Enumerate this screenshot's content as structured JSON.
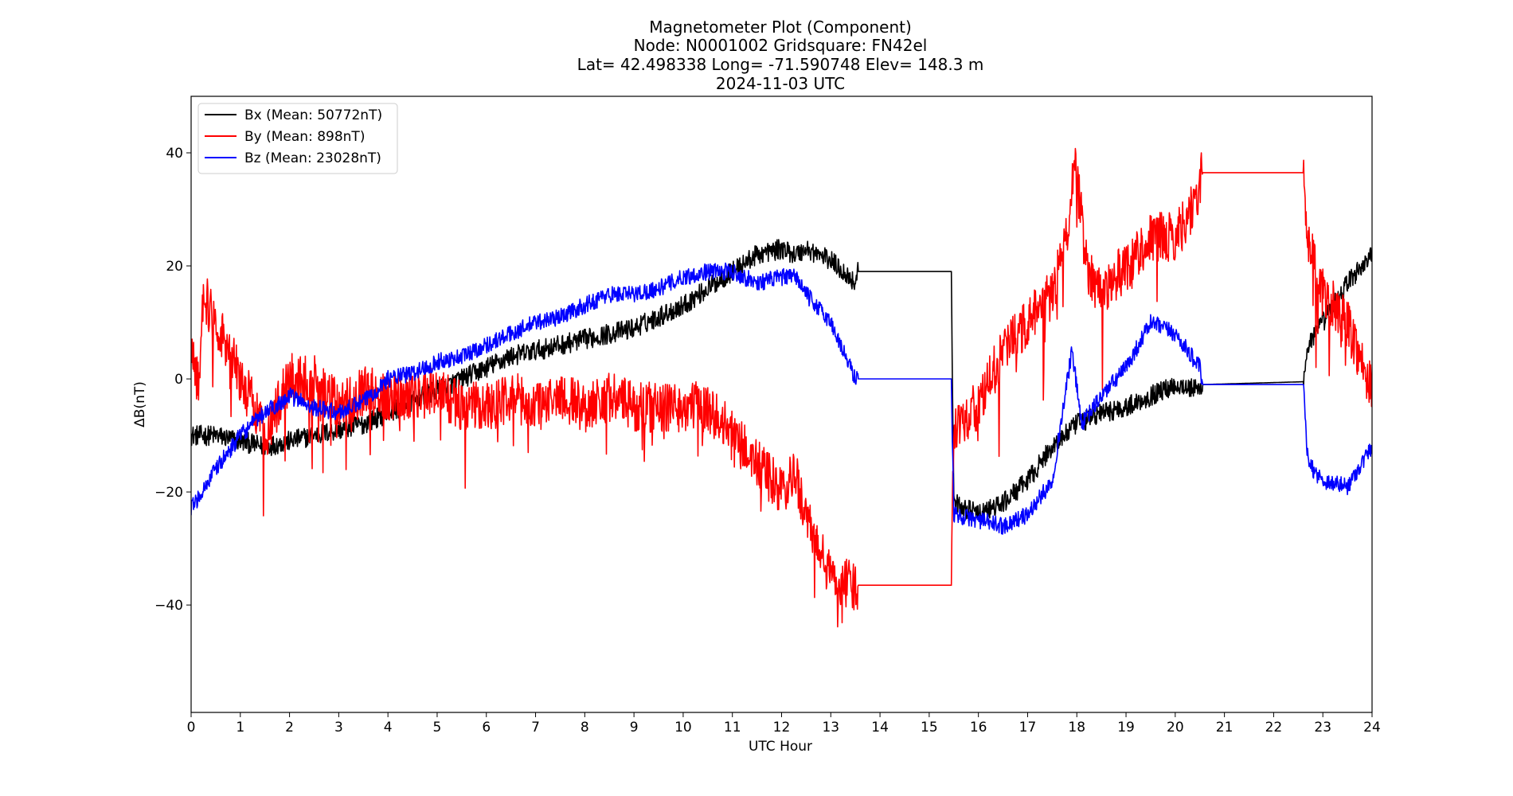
{
  "chart_data": {
    "type": "line",
    "title_lines": [
      "Magnetometer Plot (Component)",
      "Node:  N0001002     Gridsquare:  FN42el",
      "Lat= 42.498338    Long= -71.590748    Elev= 148.3 m",
      "2024-11-03  UTC"
    ],
    "xlabel": "UTC Hour",
    "ylabel": "ΔB(nT)",
    "xlim": [
      0,
      24
    ],
    "ylim": [
      -59,
      50
    ],
    "x_ticks": [
      0,
      1,
      2,
      3,
      4,
      5,
      6,
      7,
      8,
      9,
      10,
      11,
      12,
      13,
      14,
      15,
      16,
      17,
      18,
      19,
      20,
      21,
      22,
      23,
      24
    ],
    "y_ticks": [
      -40,
      -20,
      0,
      20,
      40
    ],
    "y_tick_labels": [
      "−40",
      "−20",
      "0",
      "20",
      "40"
    ],
    "grid": false,
    "legend_position": "top-left",
    "series": [
      {
        "name": "Bx (Mean: 50772nT)",
        "color": "#000000",
        "noise": 1.8,
        "x": [
          0,
          0.5,
          1,
          1.5,
          2,
          2.5,
          3,
          3.5,
          4,
          4.5,
          5,
          5.5,
          6,
          6.5,
          7,
          7.5,
          8,
          8.5,
          9,
          9.5,
          10,
          10.5,
          11,
          11.5,
          12,
          12.3,
          12.5,
          13,
          13.5,
          13.55,
          15.45,
          15.5,
          16,
          16.5,
          17,
          17.5,
          18,
          18.5,
          19,
          19.5,
          20,
          20.5,
          20.55,
          22.6,
          22.7,
          23,
          23.5,
          24
        ],
        "y": [
          -10,
          -10,
          -11,
          -12,
          -11,
          -10,
          -9,
          -8,
          -6,
          -4,
          -2,
          0,
          2,
          4,
          5,
          6,
          7,
          8,
          9,
          11,
          13,
          16,
          19,
          22,
          23,
          22,
          23,
          21,
          17,
          19,
          19,
          -22,
          -24,
          -22,
          -18,
          -12,
          -8,
          -6,
          -5,
          -3,
          -1,
          -2,
          -1,
          -0.5,
          6,
          10,
          17,
          22
        ]
      },
      {
        "name": "By (Mean: 898nT)",
        "color": "#ff0000",
        "noise": 4.5,
        "x": [
          0,
          0.15,
          0.25,
          0.5,
          0.8,
          1,
          1.3,
          1.5,
          2,
          2.5,
          3,
          3.5,
          4,
          4.5,
          5,
          5.5,
          6,
          6.5,
          7,
          7.5,
          8,
          8.5,
          9,
          9.5,
          10,
          10.5,
          11,
          11.5,
          12,
          12.3,
          12.5,
          13,
          13.5,
          13.55,
          15.45,
          15.5,
          16,
          16.5,
          17,
          17.5,
          17.8,
          17.95,
          18.2,
          18.5,
          19,
          19.5,
          20,
          20.45,
          20.55,
          22.6,
          22.7,
          23,
          23.5,
          24
        ],
        "y": [
          3,
          0,
          15,
          10,
          5,
          0,
          -5,
          -10,
          0,
          0,
          -5,
          -2,
          -3,
          -3,
          -2,
          -5,
          -5,
          -3,
          -5,
          -3,
          -5,
          -3,
          -5,
          -5,
          -5,
          -5,
          -10,
          -15,
          -20,
          -17,
          -25,
          -35,
          -37,
          -36.5,
          -36.5,
          -8,
          -5,
          5,
          10,
          15,
          25,
          40,
          20,
          15,
          20,
          25,
          25,
          32,
          36.5,
          36.5,
          25,
          15,
          10,
          -2
        ]
      },
      {
        "name": "Bz (Mean: 23028nT)",
        "color": "#0000ff",
        "noise": 1.5,
        "x": [
          0,
          0.5,
          1,
          1.5,
          2,
          2.5,
          3,
          3.5,
          4,
          4.5,
          5,
          5.5,
          6,
          6.5,
          7,
          7.5,
          8,
          8.5,
          9,
          9.5,
          10,
          10.5,
          11,
          11.5,
          12,
          12.3,
          12.5,
          13,
          13.5,
          13.55,
          15.45,
          15.5,
          16,
          16.5,
          17,
          17.5,
          17.9,
          18.1,
          18.5,
          19,
          19.5,
          20,
          20.5,
          20.55,
          22.6,
          22.7,
          23,
          23.5,
          24
        ],
        "y": [
          -23,
          -16,
          -10,
          -6,
          -3,
          -5,
          -6,
          -4,
          0,
          1,
          3,
          4,
          6,
          8,
          10,
          11,
          13,
          15,
          15,
          16,
          18,
          19,
          19,
          17,
          18,
          18,
          15,
          10,
          0,
          0,
          0,
          -24,
          -25,
          -26,
          -24,
          -18,
          5,
          -8,
          -3,
          2,
          10,
          8,
          2,
          -1,
          -1,
          -15,
          -18,
          -19,
          -12
        ]
      }
    ]
  }
}
